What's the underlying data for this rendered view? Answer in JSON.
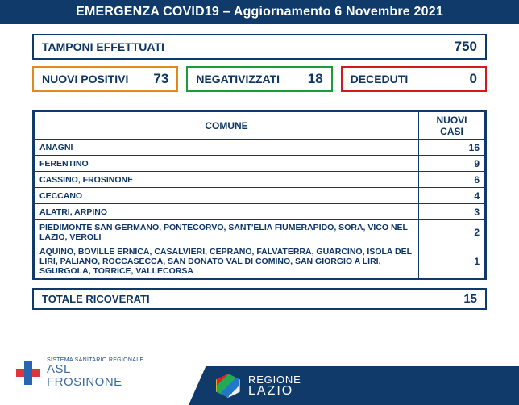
{
  "colors": {
    "navy": "#0f3a6a",
    "orange": "#e08a1e",
    "green": "#1a9c3c",
    "red": "#d21a1a",
    "navy_text": "#0d3566",
    "white": "#ffffff",
    "cross_blue": "#2a65b0",
    "cross_red": "#d83a3a",
    "asl_blue": "#3a6aa0"
  },
  "fontsizes": {
    "header": 16,
    "box_label": 14,
    "box_value": 17,
    "table_header": 12,
    "table_cell": 10.5,
    "table_value": 12,
    "totale_label": 13,
    "totale_value": 15
  },
  "header": {
    "title": "EMERGENZA COVID19 – Aggiornamento 6 Novembre 2021"
  },
  "tamponi": {
    "label": "TAMPONI EFFETTUATI",
    "value": "750"
  },
  "stats": [
    {
      "label": "NUOVI POSITIVI",
      "value": "73",
      "color_key": "orange"
    },
    {
      "label": "NEGATIVIZZATI",
      "value": "18",
      "color_key": "green"
    },
    {
      "label": "DECEDUTI",
      "value": "0",
      "color_key": "red"
    }
  ],
  "table": {
    "header_comune": "COMUNE",
    "header_casi": "NUOVI CASI",
    "rows": [
      {
        "comune": "ANAGNI",
        "casi": "16"
      },
      {
        "comune": "FERENTINO",
        "casi": "9"
      },
      {
        "comune": "CASSINO, FROSINONE",
        "casi": "6"
      },
      {
        "comune": "CECCANO",
        "casi": "4"
      },
      {
        "comune": "ALATRI, ARPINO",
        "casi": "3"
      },
      {
        "comune": "PIEDIMONTE SAN GERMANO, PONTECORVO, SANT'ELIA FIUMERAPIDO, SORA, VICO NEL LAZIO, VEROLI",
        "casi": "2"
      },
      {
        "comune": "AQUINO, BOVILLE ERNICA, CASALVIERI, CEPRANO, FALVATERRA, GUARCINO, ISOLA DEL LIRI, PALIANO, ROCCASECCA, SAN DONATO VAL DI COMINO, SAN GIORGIO A LIRI, SGURGOLA, TORRICE, VALLECORSA",
        "casi": "1"
      }
    ]
  },
  "totale": {
    "label": "TOTALE RICOVERATI",
    "value": "15"
  },
  "footer": {
    "asl_line1": "SISTEMA SANITARIO REGIONALE",
    "asl_line2": "ASL",
    "asl_line3": "FROSINONE",
    "regione_line1": "REGIONE",
    "regione_line2": "LAZIO"
  }
}
